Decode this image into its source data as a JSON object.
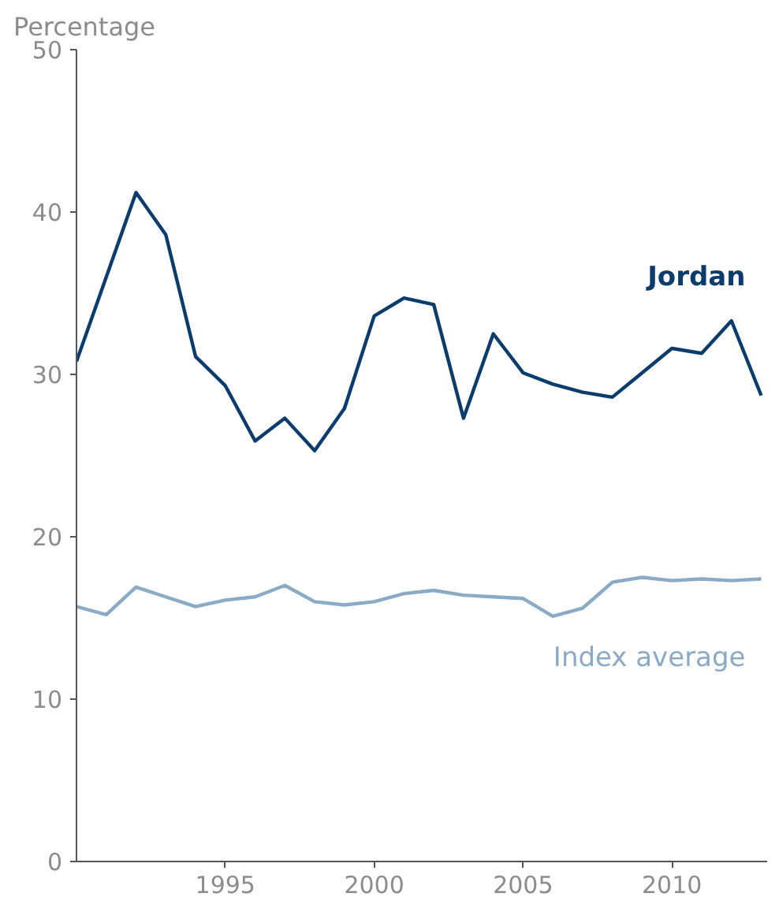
{
  "chart_data": {
    "type": "line",
    "ylabel": "Percentage",
    "x": [
      1990,
      1991,
      1992,
      1993,
      1994,
      1995,
      1996,
      1997,
      1998,
      1999,
      2000,
      2001,
      2002,
      2003,
      2004,
      2005,
      2006,
      2007,
      2008,
      2009,
      2010,
      2011,
      2012,
      2013
    ],
    "series": [
      {
        "name": "Jordan",
        "color": "#0b3c6e",
        "values": [
          30.8,
          36.0,
          41.2,
          38.6,
          31.1,
          29.3,
          25.9,
          27.3,
          25.3,
          27.9,
          33.6,
          34.7,
          34.3,
          27.3,
          32.5,
          30.1,
          29.4,
          28.9,
          28.6,
          30.1,
          31.6,
          31.3,
          33.3,
          28.7
        ]
      },
      {
        "name": "Index average",
        "color": "#8aaac6",
        "values": [
          15.7,
          15.2,
          16.9,
          16.3,
          15.7,
          16.1,
          16.3,
          17.0,
          16.0,
          15.8,
          16.0,
          16.5,
          16.7,
          16.4,
          16.3,
          16.2,
          15.1,
          15.6,
          17.2,
          17.5,
          17.3,
          17.4,
          17.3,
          17.4
        ]
      }
    ],
    "xlim": [
      1990,
      2013.2
    ],
    "xticks": [
      1995,
      2000,
      2005,
      2010
    ],
    "ylim": [
      0,
      50
    ],
    "yticks": [
      0,
      10,
      20,
      30,
      40,
      50
    ],
    "grid": false,
    "marker": "none",
    "line_style": "solid"
  }
}
